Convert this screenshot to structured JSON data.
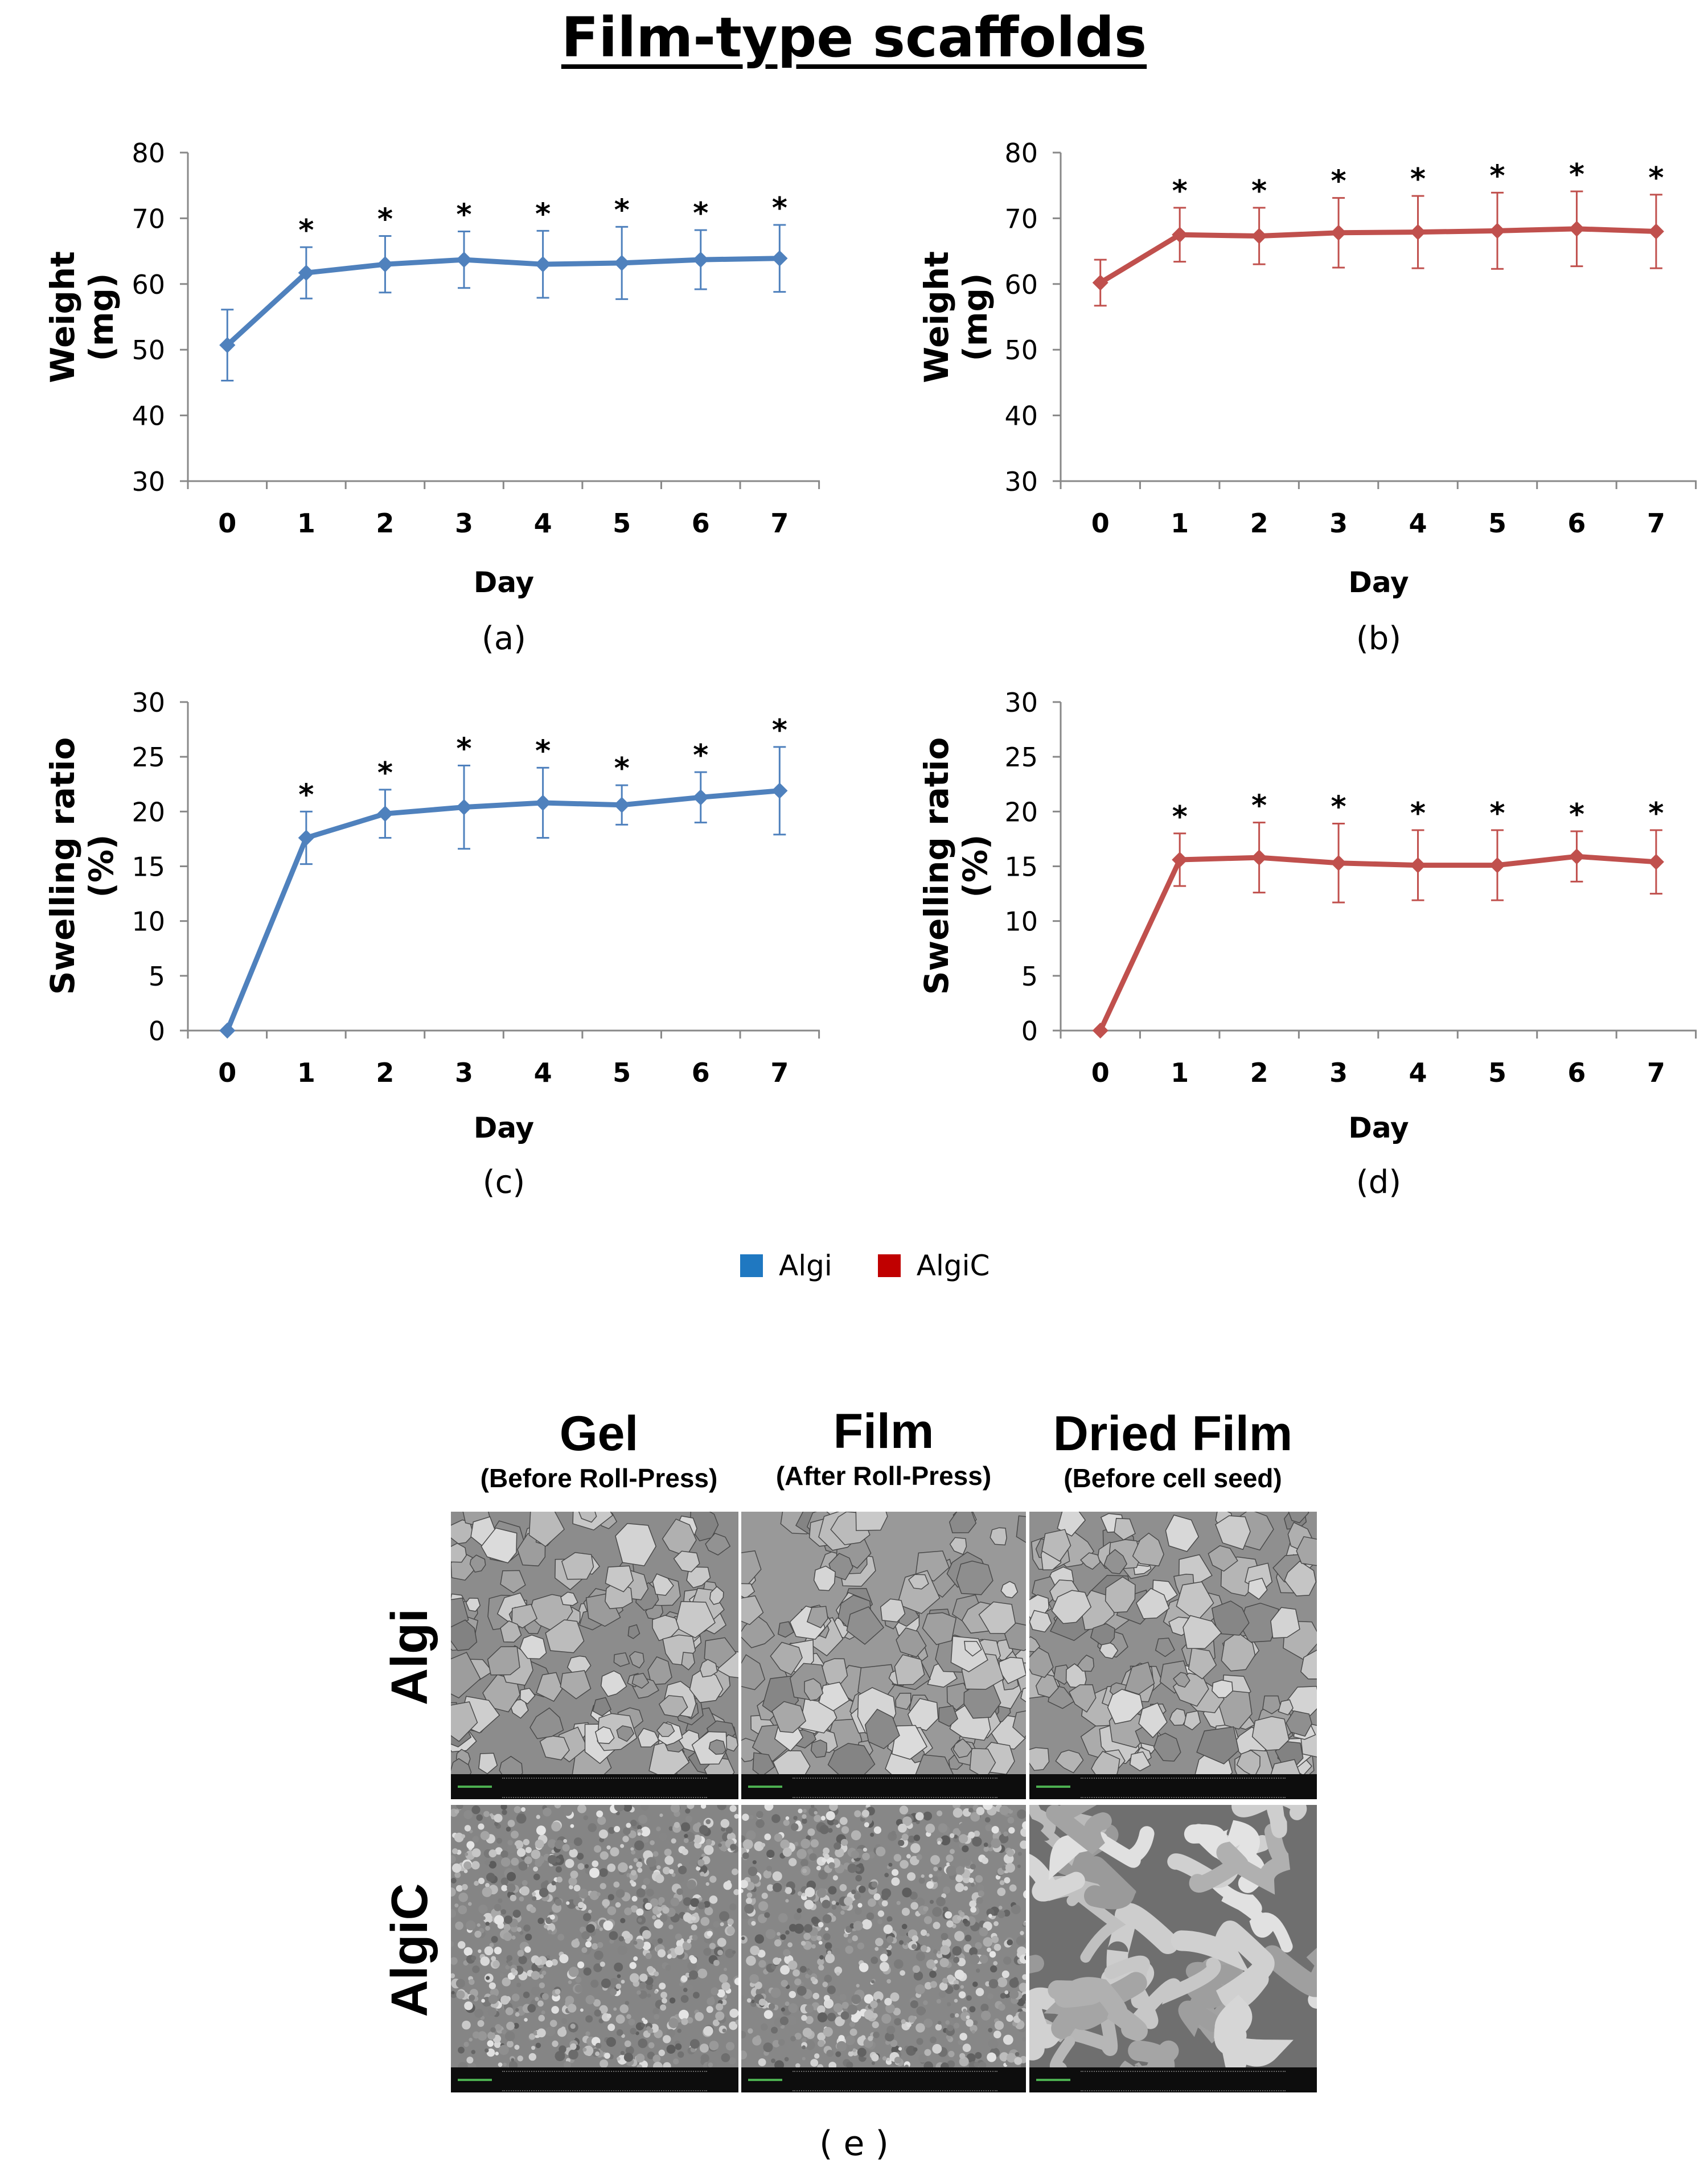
{
  "title": "Film-type scaffolds",
  "colors": {
    "algi": "#4f81bd",
    "algic": "#c0504d",
    "legend_algi": "#1f78c1",
    "legend_algic": "#c00000"
  },
  "legend": [
    {
      "label": "Algi",
      "color": "#1f78c1"
    },
    {
      "label": "AlgiC",
      "color": "#c00000"
    }
  ],
  "chart_data": [
    {
      "type": "line",
      "panel": "(a)",
      "xlabel": "Day",
      "ylabel_lines": [
        "Weight",
        "(mg)"
      ],
      "ylim": [
        30,
        80
      ],
      "yticks": [
        30,
        40,
        50,
        60,
        70,
        80
      ],
      "x": [
        0,
        1,
        2,
        3,
        4,
        5,
        6,
        7
      ],
      "series": [
        {
          "name": "Algi",
          "color": "#4f81bd",
          "values": [
            50.7,
            61.7,
            63.0,
            63.7,
            63.0,
            63.2,
            63.7,
            63.9
          ],
          "errors": [
            5.4,
            3.9,
            4.3,
            4.3,
            5.1,
            5.5,
            4.5,
            5.1
          ]
        }
      ],
      "significance": [
        "",
        "*",
        "*",
        "*",
        "*",
        "*",
        "*",
        "*"
      ]
    },
    {
      "type": "line",
      "panel": "(b)",
      "xlabel": "Day",
      "ylabel_lines": [
        "Weight",
        "(mg)"
      ],
      "ylim": [
        30,
        80
      ],
      "yticks": [
        30,
        40,
        50,
        60,
        70,
        80
      ],
      "x": [
        0,
        1,
        2,
        3,
        4,
        5,
        6,
        7
      ],
      "series": [
        {
          "name": "AlgiC",
          "color": "#c0504d",
          "values": [
            60.2,
            67.5,
            67.3,
            67.8,
            67.9,
            68.1,
            68.4,
            68.0
          ],
          "errors": [
            3.5,
            4.1,
            4.3,
            5.3,
            5.5,
            5.8,
            5.7,
            5.6
          ]
        }
      ],
      "significance": [
        "",
        "*",
        "*",
        "*",
        "*",
        "*",
        "*",
        "*"
      ]
    },
    {
      "type": "line",
      "panel": "(c)",
      "xlabel": "Day",
      "ylabel_lines": [
        "Swelling ratio",
        "(%)"
      ],
      "ylim": [
        0,
        30
      ],
      "yticks": [
        0,
        5,
        10,
        15,
        20,
        25,
        30
      ],
      "x": [
        0,
        1,
        2,
        3,
        4,
        5,
        6,
        7
      ],
      "series": [
        {
          "name": "Algi",
          "color": "#4f81bd",
          "values": [
            0,
            17.6,
            19.8,
            20.4,
            20.8,
            20.6,
            21.3,
            21.9
          ],
          "errors": [
            0,
            2.4,
            2.2,
            3.8,
            3.2,
            1.8,
            2.3,
            4.0
          ]
        }
      ],
      "significance": [
        "",
        "*",
        "*",
        "*",
        "*",
        "*",
        "*",
        "*"
      ]
    },
    {
      "type": "line",
      "panel": "(d)",
      "xlabel": "Day",
      "ylabel_lines": [
        "Swelling ratio",
        "(%)"
      ],
      "ylim": [
        0,
        30
      ],
      "yticks": [
        0,
        5,
        10,
        15,
        20,
        25,
        30
      ],
      "x": [
        0,
        1,
        2,
        3,
        4,
        5,
        6,
        7
      ],
      "series": [
        {
          "name": "AlgiC",
          "color": "#c0504d",
          "values": [
            0,
            15.6,
            15.8,
            15.3,
            15.1,
            15.1,
            15.9,
            15.4
          ],
          "errors": [
            0,
            2.4,
            3.2,
            3.6,
            3.2,
            3.2,
            2.3,
            2.9
          ]
        }
      ],
      "significance": [
        "",
        "*",
        "*",
        "*",
        "*",
        "*",
        "*",
        "*"
      ]
    }
  ],
  "sem": {
    "columns": [
      {
        "title": "Gel",
        "subtitle": "(Before Roll-Press)"
      },
      {
        "title": "Film",
        "subtitle": "(After Roll-Press)"
      },
      {
        "title": "Dried Film",
        "subtitle": "(Before cell seed)"
      }
    ],
    "rows": [
      "Algi",
      "AlgiC"
    ],
    "panel": "( e )"
  }
}
